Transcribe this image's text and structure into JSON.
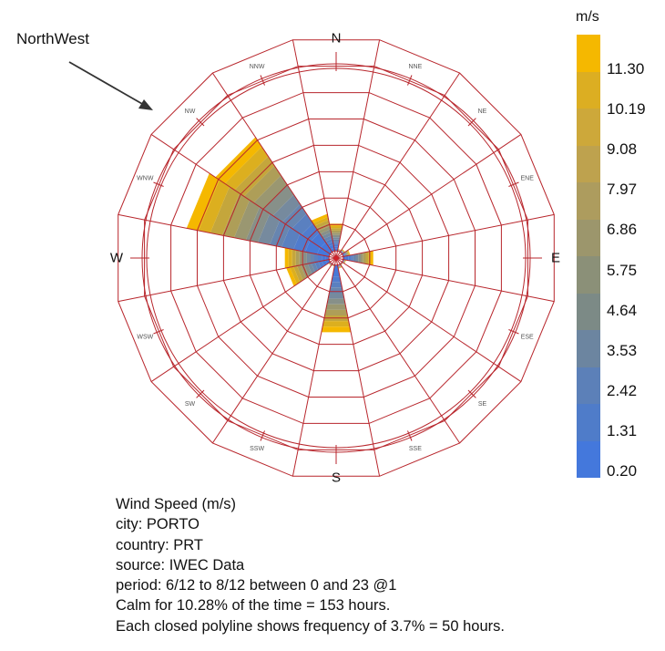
{
  "annotation": "NorthWest",
  "legend": {
    "title": "m/s",
    "ticks": [
      "11.30",
      "10.19",
      "9.08",
      "7.97",
      "6.86",
      "5.75",
      "4.64",
      "3.53",
      "2.42",
      "1.31",
      "0.20"
    ],
    "colors_top_to_bottom": [
      "#f5b800",
      "#dcae22",
      "#cda83a",
      "#bea24e",
      "#ad9c5e",
      "#9c966c",
      "#8b9078",
      "#7c8a86",
      "#6c85a0",
      "#5c80b8",
      "#4f7cc9",
      "#4478dc"
    ]
  },
  "info": {
    "line1": "Wind Speed (m/s)",
    "line2": "city: PORTO",
    "line3": "country: PRT",
    "line4": "source: IWEC Data",
    "line5": "period: 6/12 to 8/12 between 0 and 23 @1",
    "line6": "Calm for 10.28% of the time = 153 hours.",
    "line7": "Each closed polyline shows frequency of 3.7% = 50 hours."
  },
  "chart_data": {
    "type": "wind-rose",
    "directions": [
      "N",
      "NNE",
      "NE",
      "ENE",
      "E",
      "ESE",
      "SE",
      "SSE",
      "S",
      "SSW",
      "SW",
      "WSW",
      "W",
      "WNW",
      "NW",
      "NNW"
    ],
    "ring_step_percent": 3.7,
    "ring_count": 8,
    "frequency_percent": [
      3.8,
      0.3,
      0.5,
      1.0,
      4.2,
      0.4,
      0.2,
      0.5,
      9.4,
      0.2,
      0.3,
      6.0,
      6.2,
      20.0,
      19.0,
      5.2
    ],
    "speed_range": [
      0.2,
      11.3
    ],
    "colors": {
      "frame": "#b8262c",
      "grid": "#b8262c",
      "slow": "#4478dc",
      "fast": "#f5b800"
    }
  }
}
